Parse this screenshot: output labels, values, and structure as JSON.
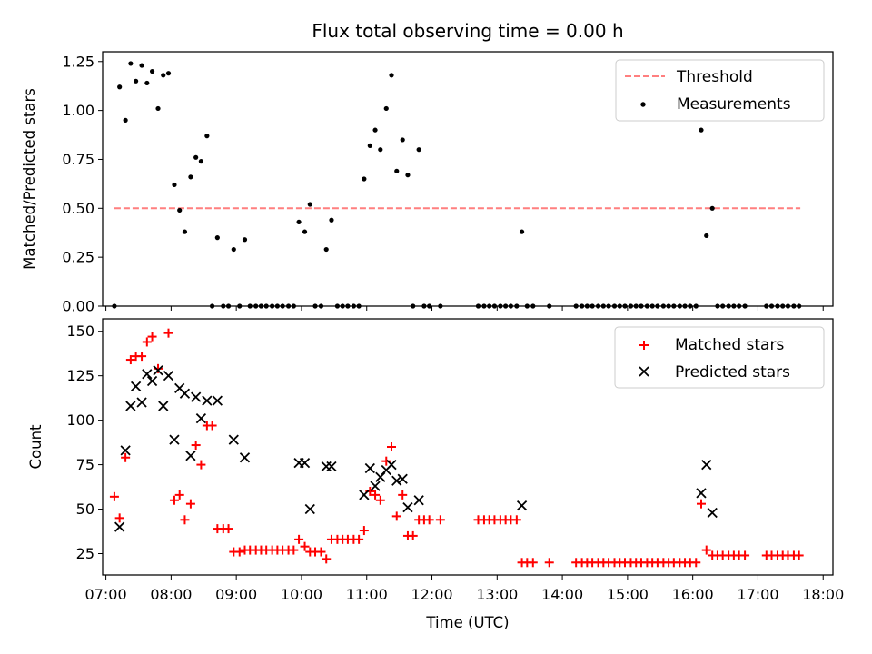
{
  "colors": {
    "threshold": "#ff7f7f",
    "measurement": "#000000",
    "matched": "#ff0000",
    "predicted": "#000000"
  },
  "chart_data": [
    {
      "type": "scatter",
      "title": "Flux total observing time = 0.00 h",
      "xlabel": "",
      "ylabel": "Matched/Predicted stars",
      "x_unit": "hours (UTC)",
      "xlim": [
        6.95,
        18.15
      ],
      "ylim": [
        0,
        1.3
      ],
      "y_ticks": [
        "0.00",
        "0.25",
        "0.50",
        "0.75",
        "1.00",
        "1.25"
      ],
      "y_tick_values": [
        0,
        0.25,
        0.5,
        0.75,
        1.0,
        1.25
      ],
      "grid": false,
      "legend_position": "top-right",
      "legend": [
        "Threshold",
        "Measurements"
      ],
      "threshold": {
        "name": "Threshold",
        "y": 0.5,
        "x_range": [
          7.13,
          17.65
        ],
        "style": "dashed"
      },
      "series": [
        {
          "name": "Measurements",
          "marker": "dot",
          "points": [
            [
              7.13,
              0.0
            ],
            [
              7.21,
              1.12
            ],
            [
              7.3,
              0.95
            ],
            [
              7.38,
              1.24
            ],
            [
              7.46,
              1.15
            ],
            [
              7.55,
              1.23
            ],
            [
              7.63,
              1.14
            ],
            [
              7.71,
              1.2
            ],
            [
              7.8,
              1.01
            ],
            [
              7.88,
              1.18
            ],
            [
              7.96,
              1.19
            ],
            [
              8.05,
              0.62
            ],
            [
              8.13,
              0.49
            ],
            [
              8.21,
              0.38
            ],
            [
              8.3,
              0.66
            ],
            [
              8.38,
              0.76
            ],
            [
              8.46,
              0.74
            ],
            [
              8.55,
              0.87
            ],
            [
              8.63,
              0.0
            ],
            [
              8.71,
              0.35
            ],
            [
              8.8,
              0.0
            ],
            [
              8.88,
              0.0
            ],
            [
              8.96,
              0.29
            ],
            [
              9.05,
              0.0
            ],
            [
              9.13,
              0.34
            ],
            [
              9.21,
              0.0
            ],
            [
              9.3,
              0.0
            ],
            [
              9.38,
              0.0
            ],
            [
              9.46,
              0.0
            ],
            [
              9.55,
              0.0
            ],
            [
              9.63,
              0.0
            ],
            [
              9.71,
              0.0
            ],
            [
              9.8,
              0.0
            ],
            [
              9.88,
              0.0
            ],
            [
              9.96,
              0.43
            ],
            [
              10.05,
              0.38
            ],
            [
              10.13,
              0.52
            ],
            [
              10.21,
              0.0
            ],
            [
              10.3,
              0.0
            ],
            [
              10.38,
              0.29
            ],
            [
              10.46,
              0.44
            ],
            [
              10.55,
              0.0
            ],
            [
              10.63,
              0.0
            ],
            [
              10.71,
              0.0
            ],
            [
              10.8,
              0.0
            ],
            [
              10.88,
              0.0
            ],
            [
              10.96,
              0.65
            ],
            [
              11.05,
              0.82
            ],
            [
              11.13,
              0.9
            ],
            [
              11.21,
              0.8
            ],
            [
              11.3,
              1.01
            ],
            [
              11.38,
              1.18
            ],
            [
              11.46,
              0.69
            ],
            [
              11.55,
              0.85
            ],
            [
              11.63,
              0.67
            ],
            [
              11.71,
              0.0
            ],
            [
              11.8,
              0.8
            ],
            [
              11.88,
              0.0
            ],
            [
              11.96,
              0.0
            ],
            [
              12.13,
              0.0
            ],
            [
              12.71,
              0.0
            ],
            [
              12.8,
              0.0
            ],
            [
              12.88,
              0.0
            ],
            [
              12.96,
              0.0
            ],
            [
              13.05,
              0.0
            ],
            [
              13.13,
              0.0
            ],
            [
              13.21,
              0.0
            ],
            [
              13.3,
              0.0
            ],
            [
              13.38,
              0.38
            ],
            [
              13.46,
              0.0
            ],
            [
              13.55,
              0.0
            ],
            [
              13.8,
              0.0
            ],
            [
              14.21,
              0.0
            ],
            [
              14.3,
              0.0
            ],
            [
              14.38,
              0.0
            ],
            [
              14.46,
              0.0
            ],
            [
              14.55,
              0.0
            ],
            [
              14.63,
              0.0
            ],
            [
              14.71,
              0.0
            ],
            [
              14.8,
              0.0
            ],
            [
              14.88,
              0.0
            ],
            [
              14.96,
              0.0
            ],
            [
              15.05,
              0.0
            ],
            [
              15.13,
              0.0
            ],
            [
              15.21,
              0.0
            ],
            [
              15.3,
              0.0
            ],
            [
              15.38,
              0.0
            ],
            [
              15.46,
              0.0
            ],
            [
              15.55,
              0.0
            ],
            [
              15.63,
              0.0
            ],
            [
              15.71,
              0.0
            ],
            [
              15.8,
              0.0
            ],
            [
              15.88,
              0.0
            ],
            [
              15.96,
              0.0
            ],
            [
              16.05,
              0.0
            ],
            [
              16.13,
              0.9
            ],
            [
              16.21,
              0.36
            ],
            [
              16.3,
              0.5
            ],
            [
              16.38,
              0.0
            ],
            [
              16.46,
              0.0
            ],
            [
              16.55,
              0.0
            ],
            [
              16.63,
              0.0
            ],
            [
              16.71,
              0.0
            ],
            [
              16.8,
              0.0
            ],
            [
              17.13,
              0.0
            ],
            [
              17.21,
              0.0
            ],
            [
              17.3,
              0.0
            ],
            [
              17.38,
              0.0
            ],
            [
              17.46,
              0.0
            ],
            [
              17.55,
              0.0
            ],
            [
              17.63,
              0.0
            ]
          ]
        }
      ]
    },
    {
      "type": "scatter",
      "title": "",
      "xlabel": "Time (UTC)",
      "ylabel": "Count",
      "x_unit": "hours (UTC)",
      "xlim": [
        6.95,
        18.15
      ],
      "ylim": [
        13,
        157
      ],
      "x_ticks": [
        "07:00",
        "08:00",
        "09:00",
        "10:00",
        "11:00",
        "12:00",
        "13:00",
        "14:00",
        "15:00",
        "16:00",
        "17:00",
        "18:00"
      ],
      "x_tick_values": [
        7,
        8,
        9,
        10,
        11,
        12,
        13,
        14,
        15,
        16,
        17,
        18
      ],
      "y_ticks": [
        "25",
        "50",
        "75",
        "100",
        "125",
        "150"
      ],
      "y_tick_values": [
        25,
        50,
        75,
        100,
        125,
        150
      ],
      "grid": false,
      "legend_position": "top-right",
      "legend": [
        "Matched stars",
        "Predicted stars"
      ],
      "series": [
        {
          "name": "Matched stars",
          "marker": "plus",
          "points": [
            [
              7.13,
              57
            ],
            [
              7.21,
              45
            ],
            [
              7.3,
              79
            ],
            [
              7.38,
              134
            ],
            [
              7.46,
              136
            ],
            [
              7.55,
              136
            ],
            [
              7.63,
              144
            ],
            [
              7.71,
              147
            ],
            [
              7.8,
              129
            ],
            [
              7.96,
              149
            ],
            [
              8.05,
              55
            ],
            [
              8.13,
              58
            ],
            [
              8.21,
              44
            ],
            [
              8.3,
              53
            ],
            [
              8.38,
              86
            ],
            [
              8.46,
              75
            ],
            [
              8.55,
              97
            ],
            [
              8.63,
              97
            ],
            [
              8.71,
              39
            ],
            [
              8.8,
              39
            ],
            [
              8.88,
              39
            ],
            [
              8.96,
              26
            ],
            [
              9.05,
              26
            ],
            [
              9.13,
              27
            ],
            [
              9.21,
              27
            ],
            [
              9.3,
              27
            ],
            [
              9.38,
              27
            ],
            [
              9.46,
              27
            ],
            [
              9.55,
              27
            ],
            [
              9.63,
              27
            ],
            [
              9.71,
              27
            ],
            [
              9.8,
              27
            ],
            [
              9.88,
              27
            ],
            [
              9.96,
              33
            ],
            [
              10.05,
              29
            ],
            [
              10.13,
              26
            ],
            [
              10.21,
              26
            ],
            [
              10.3,
              26
            ],
            [
              10.38,
              22
            ],
            [
              10.46,
              33
            ],
            [
              10.55,
              33
            ],
            [
              10.63,
              33
            ],
            [
              10.71,
              33
            ],
            [
              10.8,
              33
            ],
            [
              10.88,
              33
            ],
            [
              10.96,
              38
            ],
            [
              11.05,
              60
            ],
            [
              11.13,
              58
            ],
            [
              11.21,
              55
            ],
            [
              11.3,
              77
            ],
            [
              11.38,
              85
            ],
            [
              11.46,
              46
            ],
            [
              11.55,
              58
            ],
            [
              11.63,
              35
            ],
            [
              11.71,
              35
            ],
            [
              11.8,
              44
            ],
            [
              11.88,
              44
            ],
            [
              11.96,
              44
            ],
            [
              12.13,
              44
            ],
            [
              12.71,
              44
            ],
            [
              12.8,
              44
            ],
            [
              12.88,
              44
            ],
            [
              12.96,
              44
            ],
            [
              13.05,
              44
            ],
            [
              13.13,
              44
            ],
            [
              13.21,
              44
            ],
            [
              13.3,
              44
            ],
            [
              13.38,
              20
            ],
            [
              13.46,
              20
            ],
            [
              13.55,
              20
            ],
            [
              13.8,
              20
            ],
            [
              14.21,
              20
            ],
            [
              14.3,
              20
            ],
            [
              14.38,
              20
            ],
            [
              14.46,
              20
            ],
            [
              14.55,
              20
            ],
            [
              14.63,
              20
            ],
            [
              14.71,
              20
            ],
            [
              14.8,
              20
            ],
            [
              14.88,
              20
            ],
            [
              14.96,
              20
            ],
            [
              15.05,
              20
            ],
            [
              15.13,
              20
            ],
            [
              15.21,
              20
            ],
            [
              15.3,
              20
            ],
            [
              15.38,
              20
            ],
            [
              15.46,
              20
            ],
            [
              15.55,
              20
            ],
            [
              15.63,
              20
            ],
            [
              15.71,
              20
            ],
            [
              15.8,
              20
            ],
            [
              15.88,
              20
            ],
            [
              15.96,
              20
            ],
            [
              16.05,
              20
            ],
            [
              16.13,
              53
            ],
            [
              16.21,
              27
            ],
            [
              16.3,
              24
            ],
            [
              16.38,
              24
            ],
            [
              16.46,
              24
            ],
            [
              16.55,
              24
            ],
            [
              16.63,
              24
            ],
            [
              16.71,
              24
            ],
            [
              16.8,
              24
            ],
            [
              17.13,
              24
            ],
            [
              17.21,
              24
            ],
            [
              17.3,
              24
            ],
            [
              17.38,
              24
            ],
            [
              17.46,
              24
            ],
            [
              17.55,
              24
            ],
            [
              17.63,
              24
            ]
          ]
        },
        {
          "name": "Predicted stars",
          "marker": "x",
          "points": [
            [
              7.21,
              40
            ],
            [
              7.3,
              83
            ],
            [
              7.38,
              108
            ],
            [
              7.46,
              119
            ],
            [
              7.55,
              110
            ],
            [
              7.63,
              126
            ],
            [
              7.71,
              122
            ],
            [
              7.8,
              128
            ],
            [
              7.88,
              108
            ],
            [
              7.96,
              125
            ],
            [
              8.05,
              89
            ],
            [
              8.13,
              118
            ],
            [
              8.21,
              115
            ],
            [
              8.3,
              80
            ],
            [
              8.38,
              113
            ],
            [
              8.46,
              101
            ],
            [
              8.55,
              111
            ],
            [
              8.71,
              111
            ],
            [
              8.96,
              89
            ],
            [
              9.13,
              79
            ],
            [
              9.96,
              76
            ],
            [
              10.05,
              76
            ],
            [
              10.13,
              50
            ],
            [
              10.38,
              74
            ],
            [
              10.46,
              74
            ],
            [
              10.96,
              58
            ],
            [
              11.05,
              73
            ],
            [
              11.13,
              63
            ],
            [
              11.21,
              68
            ],
            [
              11.3,
              72
            ],
            [
              11.38,
              75
            ],
            [
              11.46,
              66
            ],
            [
              11.55,
              67
            ],
            [
              11.63,
              51
            ],
            [
              11.8,
              55
            ],
            [
              13.38,
              52
            ],
            [
              16.13,
              59
            ],
            [
              16.21,
              75
            ],
            [
              16.3,
              48
            ]
          ]
        }
      ]
    }
  ]
}
